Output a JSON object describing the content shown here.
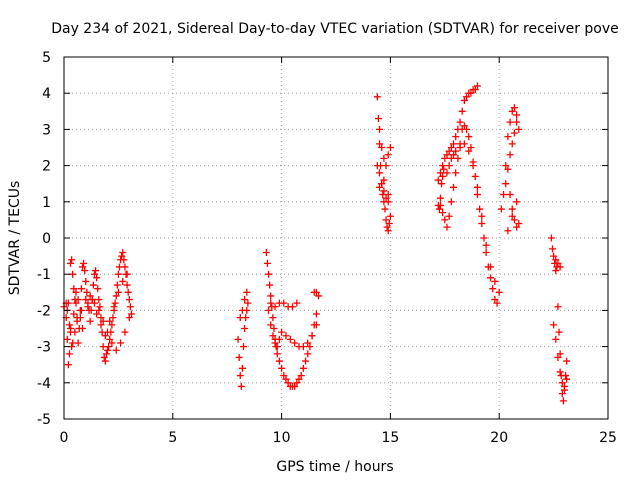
{
  "chart_data": {
    "type": "scatter",
    "title": "Day 234 of 2021, Sidereal Day-to-day VTEC variation (SDTVAR) for receiver pove",
    "xlabel": "GPS time / hours",
    "ylabel": "SDTVAR / TECUs",
    "xlim": [
      0,
      25
    ],
    "ylim": [
      -5,
      5
    ],
    "xticks": [
      "0",
      "5",
      "10",
      "15",
      "20",
      "25"
    ],
    "yticks": [
      "-5",
      "-4",
      "-3",
      "-2",
      "-1",
      "0",
      "1",
      "2",
      "3",
      "4",
      "5"
    ],
    "grid": true,
    "marker": "+",
    "series": [
      {
        "name": "SDTVAR",
        "color": "#ff0000",
        "x": [
          0.0,
          0.1,
          0.15,
          0.2,
          0.25,
          0.3,
          0.3,
          0.35,
          0.4,
          0.45,
          0.5,
          0.55,
          0.6,
          0.65,
          0.7,
          0.75,
          0.8,
          0.85,
          0.9,
          0.95,
          1.0,
          1.05,
          1.1,
          1.15,
          1.2,
          1.25,
          1.3,
          1.35,
          1.4,
          1.45,
          1.5,
          1.55,
          1.6,
          1.65,
          1.7,
          1.75,
          1.8,
          1.85,
          1.9,
          1.95,
          2.0,
          2.05,
          2.1,
          2.15,
          2.2,
          2.25,
          2.3,
          2.35,
          2.4,
          2.45,
          2.5,
          2.55,
          2.6,
          2.65,
          2.7,
          2.75,
          2.8,
          2.85,
          2.9,
          2.95,
          3.0,
          3.05,
          3.1,
          0.2,
          0.3,
          0.4,
          0.5,
          0.6,
          0.8,
          1.0,
          1.2,
          1.4,
          1.6,
          1.8,
          2.0,
          2.2,
          2.4,
          2.6,
          2.8,
          3.0,
          0.1,
          0.15,
          0.25,
          0.35,
          0.45,
          0.55,
          0.65,
          0.75,
          0.85,
          1.1,
          1.3,
          1.5,
          1.7,
          1.9,
          2.1,
          2.3,
          2.5,
          2.7,
          2.9,
          8.0,
          8.05,
          8.1,
          8.15,
          8.2,
          8.25,
          8.3,
          8.35,
          8.4,
          8.45,
          8.1,
          8.2,
          8.3,
          8.4,
          9.3,
          9.35,
          9.4,
          9.45,
          9.5,
          9.55,
          9.6,
          9.65,
          9.7,
          9.75,
          9.8,
          9.9,
          10.0,
          10.1,
          10.2,
          10.3,
          10.4,
          10.5,
          10.6,
          10.7,
          10.8,
          10.9,
          11.0,
          11.1,
          11.2,
          11.3,
          11.4,
          11.5,
          11.6,
          9.4,
          9.5,
          9.6,
          9.7,
          9.8,
          9.9,
          10.0,
          10.2,
          10.4,
          10.6,
          10.8,
          11.0,
          11.2,
          11.4,
          11.6,
          9.5,
          9.7,
          9.9,
          10.1,
          10.3,
          10.5,
          10.7,
          11.5,
          11.6,
          11.7,
          14.4,
          14.45,
          14.5,
          14.55,
          14.6,
          14.65,
          14.7,
          14.75,
          14.8,
          14.85,
          14.9,
          14.95,
          15.0,
          14.5,
          14.6,
          14.7,
          14.8,
          14.9,
          15.0,
          14.4,
          14.5,
          14.6,
          14.7,
          14.8,
          14.9,
          14.5,
          14.7,
          14.9,
          17.2,
          17.3,
          17.4,
          17.5,
          17.6,
          17.7,
          17.8,
          17.9,
          18.0,
          18.1,
          18.2,
          18.3,
          18.4,
          18.5,
          18.6,
          18.7,
          18.8,
          18.9,
          19.0,
          17.3,
          17.4,
          17.5,
          17.6,
          17.7,
          17.8,
          17.9,
          18.0,
          18.1,
          18.2,
          18.3,
          18.4,
          18.5,
          18.6,
          18.7,
          18.8,
          18.9,
          19.0,
          19.1,
          19.2,
          19.3,
          19.4,
          19.5,
          19.6,
          19.7,
          19.8,
          19.9,
          17.6,
          17.7,
          17.8,
          17.9,
          18.0,
          18.2,
          18.4,
          18.6,
          18.8,
          19.0,
          19.2,
          19.4,
          19.6,
          19.8,
          20.0,
          17.2,
          17.25,
          17.3,
          17.35,
          17.4,
          17.45,
          20.1,
          20.2,
          20.3,
          20.4,
          20.5,
          20.6,
          20.7,
          20.8,
          20.9,
          20.5,
          20.6,
          20.7,
          20.8,
          20.9,
          20.3,
          20.4,
          20.5,
          20.6,
          20.7,
          20.8,
          20.4,
          20.6,
          20.8,
          22.4,
          22.45,
          22.5,
          22.55,
          22.6,
          22.65,
          22.7,
          22.75,
          22.8,
          22.85,
          22.9,
          22.95,
          23.0,
          23.05,
          23.1,
          22.5,
          22.6,
          22.7,
          22.8,
          22.9,
          23.0,
          23.1,
          22.6,
          22.7,
          22.8
        ],
        "y": [
          -1.9,
          -2.2,
          -2.8,
          -3.5,
          -3.2,
          -2.6,
          -0.7,
          -0.6,
          -1.0,
          -1.4,
          -1.7,
          -1.5,
          -2.2,
          -2.9,
          -2.5,
          -2.0,
          -1.4,
          -0.8,
          -0.7,
          -0.9,
          -1.2,
          -1.5,
          -1.8,
          -2.0,
          -2.3,
          -2.0,
          -1.7,
          -1.3,
          -1.0,
          -0.9,
          -1.1,
          -1.4,
          -1.7,
          -1.9,
          -2.2,
          -2.6,
          -3.0,
          -3.3,
          -3.4,
          -3.2,
          -3.1,
          -3.0,
          -2.8,
          -2.6,
          -2.4,
          -2.2,
          -2.0,
          -1.8,
          -1.6,
          -1.3,
          -1.0,
          -0.8,
          -0.6,
          -0.5,
          -0.4,
          -0.6,
          -0.8,
          -1.0,
          -1.3,
          -1.5,
          -1.7,
          -1.9,
          -2.1,
          -1.8,
          -2.5,
          -2.9,
          -2.6,
          -2.3,
          -2.0,
          -1.7,
          -1.6,
          -1.8,
          -2.0,
          -2.3,
          -2.6,
          -2.9,
          -3.1,
          -2.9,
          -2.6,
          -2.2,
          -1.8,
          -2.0,
          -2.4,
          -3.0,
          -2.1,
          -1.8,
          -1.7,
          -2.2,
          -2.5,
          -1.9,
          -1.7,
          -2.1,
          -2.4,
          -2.7,
          -2.3,
          -1.9,
          -1.5,
          -1.2,
          -1.0,
          -2.8,
          -3.3,
          -3.8,
          -4.1,
          -3.6,
          -3.0,
          -2.5,
          -2.2,
          -2.0,
          -1.8,
          -2.2,
          -2.0,
          -1.7,
          -1.5,
          -0.4,
          -0.7,
          -1.0,
          -1.3,
          -1.6,
          -1.9,
          -2.2,
          -2.5,
          -2.8,
          -3.0,
          -3.2,
          -3.4,
          -3.6,
          -3.8,
          -3.9,
          -4.0,
          -4.1,
          -4.1,
          -4.1,
          -4.0,
          -3.9,
          -3.8,
          -3.6,
          -3.4,
          -3.2,
          -3.0,
          -2.7,
          -2.4,
          -2.1,
          -2.0,
          -2.4,
          -2.7,
          -2.9,
          -3.0,
          -2.8,
          -2.6,
          -2.7,
          -2.8,
          -2.9,
          -3.0,
          -3.0,
          -2.9,
          -2.7,
          -2.4,
          -1.8,
          -1.9,
          -1.8,
          -1.8,
          -1.9,
          -1.9,
          -1.8,
          -1.5,
          -1.5,
          -1.6,
          3.9,
          3.3,
          2.6,
          2.0,
          1.5,
          1.2,
          1.0,
          0.8,
          0.5,
          0.3,
          0.2,
          0.4,
          0.6,
          3.0,
          2.5,
          2.2,
          2.0,
          2.3,
          2.5,
          2.0,
          1.8,
          1.5,
          1.3,
          1.1,
          1.0,
          1.4,
          1.6,
          1.2,
          1.6,
          1.8,
          2.0,
          2.2,
          2.3,
          2.4,
          2.5,
          2.6,
          2.8,
          3.0,
          3.2,
          3.5,
          3.8,
          3.9,
          4.0,
          4.0,
          4.1,
          4.1,
          4.2,
          0.9,
          0.7,
          0.5,
          0.3,
          0.6,
          1.0,
          1.4,
          1.8,
          2.2,
          2.6,
          3.0,
          3.1,
          3.0,
          2.8,
          2.5,
          2.1,
          1.7,
          1.2,
          0.8,
          0.4,
          0.0,
          -0.4,
          -0.8,
          -1.1,
          -1.4,
          -1.7,
          -1.8,
          1.8,
          2.0,
          2.2,
          2.3,
          2.4,
          2.5,
          2.6,
          2.4,
          2.0,
          1.4,
          0.6,
          -0.2,
          -0.8,
          -1.2,
          -1.5,
          0.9,
          0.8,
          1.1,
          1.5,
          1.7,
          1.9,
          0.8,
          1.2,
          2.0,
          2.8,
          3.2,
          3.5,
          3.6,
          3.4,
          3.0,
          1.2,
          0.8,
          0.5,
          0.3,
          0.4,
          1.5,
          1.9,
          2.3,
          2.6,
          2.9,
          3.2,
          0.2,
          0.6,
          1.0,
          0.0,
          -0.3,
          -0.5,
          -0.7,
          -0.9,
          -0.8,
          -1.9,
          -2.6,
          -3.2,
          -3.8,
          -4.3,
          -4.5,
          -4.2,
          -3.8,
          -3.4,
          -2.4,
          -2.8,
          -3.3,
          -3.7,
          -4.0,
          -4.1,
          -3.9,
          -0.6,
          -0.7,
          -0.8
        ]
      }
    ]
  }
}
